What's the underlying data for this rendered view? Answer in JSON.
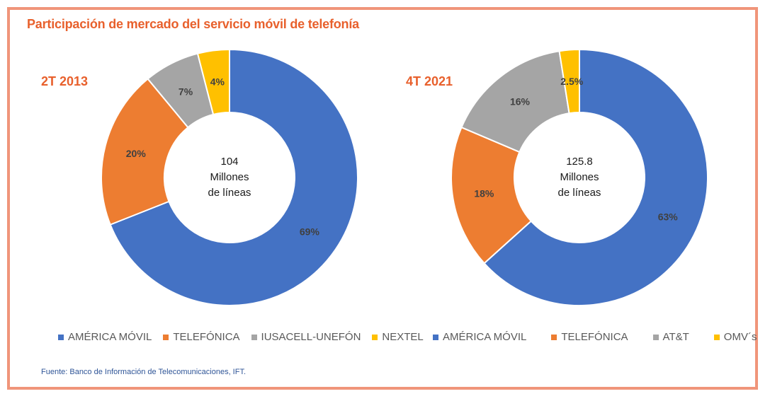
{
  "title": "Participación de mercado del servicio móvil de telefonía",
  "source": "Fuente: Banco de Información de Telecomunicaciones, IFT.",
  "chart_data": [
    {
      "type": "pie",
      "donut": true,
      "title": "2T 2013",
      "center_label": [
        "104",
        "Millones",
        "de líneas"
      ],
      "categories": [
        "AMÉRICA MÓVIL",
        "TELEFÓNICA",
        "IUSACELL-UNEFÓN",
        "NEXTEL"
      ],
      "values": [
        69,
        20,
        7,
        4
      ],
      "labels": [
        "69%",
        "20%",
        "7%",
        "4%"
      ],
      "colors": [
        "#4472c4",
        "#ed7d31",
        "#a5a5a5",
        "#ffc000"
      ],
      "legend": "bottom"
    },
    {
      "type": "pie",
      "donut": true,
      "title": "4T 2021",
      "center_label": [
        "125.8",
        "Millones",
        "de líneas"
      ],
      "categories": [
        "AMÉRICA MÓVIL",
        "TELEFÓNICA",
        "AT&T",
        "OMV´s"
      ],
      "values": [
        63,
        18,
        16,
        2.5
      ],
      "labels": [
        "63%",
        "18%",
        "16%",
        "2.5%"
      ],
      "colors": [
        "#4472c4",
        "#ed7d31",
        "#a5a5a5",
        "#ffc000"
      ],
      "legend": "bottom"
    }
  ]
}
